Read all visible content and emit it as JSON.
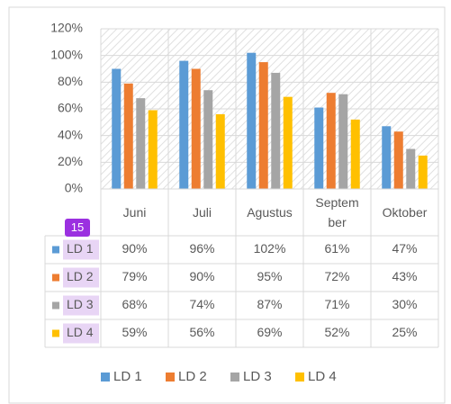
{
  "chart_data": {
    "type": "bar",
    "categories": [
      "Juni",
      "Juli",
      "Agustus",
      "September",
      "Oktober"
    ],
    "series": [
      {
        "name": "LD 1",
        "color": "#5b9bd5",
        "values": [
          90,
          96,
          102,
          61,
          47
        ],
        "value_labels": [
          "90%",
          "96%",
          "102%",
          "61%",
          "47%"
        ]
      },
      {
        "name": "LD 2",
        "color": "#ed7d31",
        "values": [
          79,
          90,
          95,
          72,
          43
        ],
        "value_labels": [
          "79%",
          "90%",
          "95%",
          "72%",
          "43%"
        ]
      },
      {
        "name": "LD 3",
        "color": "#a5a5a5",
        "values": [
          68,
          74,
          87,
          71,
          30
        ],
        "value_labels": [
          "68%",
          "74%",
          "87%",
          "71%",
          "30%"
        ]
      },
      {
        "name": "LD 4",
        "color": "#ffc000",
        "values": [
          59,
          56,
          69,
          52,
          25
        ],
        "value_labels": [
          "59%",
          "56%",
          "69%",
          "52%",
          "25%"
        ]
      }
    ],
    "ylim": [
      0,
      120
    ],
    "yticks": [
      {
        "value": 0,
        "label": "0%"
      },
      {
        "value": 20,
        "label": "20%"
      },
      {
        "value": 40,
        "label": "40%"
      },
      {
        "value": 60,
        "label": "60%"
      },
      {
        "value": 80,
        "label": "80%"
      },
      {
        "value": 100,
        "label": "100%"
      },
      {
        "value": 120,
        "label": "120%"
      }
    ],
    "legend": "bottom",
    "badge": "15"
  }
}
